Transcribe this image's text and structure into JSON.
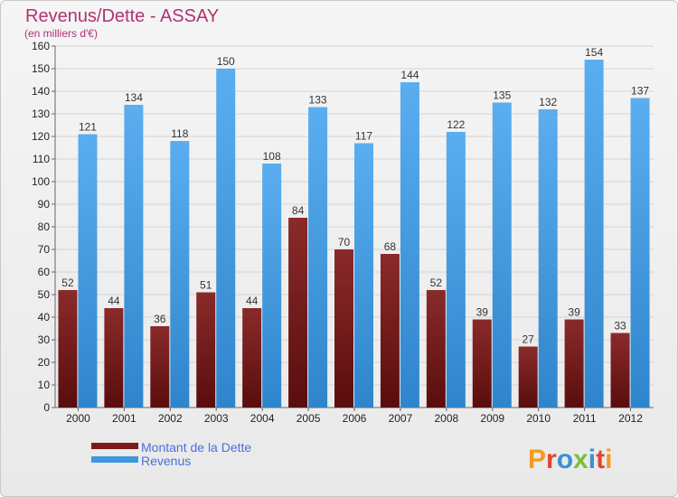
{
  "colors": {
    "dette": "#7b1b1b",
    "revenus": "#3f97de",
    "title": "#b0326f",
    "legend_text": "#4a6fdc"
  },
  "logo": {
    "text": "Proxiti"
  },
  "chart_data": {
    "type": "bar",
    "title": "Revenus/Dette - ASSAY",
    "subtitle": "(en milliers d'€)",
    "xlabel": "",
    "ylabel": "",
    "ylim": [
      0,
      160
    ],
    "yticks": [
      0,
      10,
      20,
      30,
      40,
      50,
      60,
      70,
      80,
      90,
      100,
      110,
      120,
      130,
      140,
      150,
      160
    ],
    "grid": true,
    "legend_position": "bottom-left",
    "categories": [
      "2000",
      "2001",
      "2002",
      "2003",
      "2004",
      "2005",
      "2006",
      "2007",
      "2008",
      "2009",
      "2010",
      "2011",
      "2012"
    ],
    "series": [
      {
        "name": "Montant de la Dette",
        "values": [
          52,
          44,
          36,
          51,
          44,
          84,
          70,
          68,
          52,
          39,
          27,
          39,
          33
        ]
      },
      {
        "name": "Revenus",
        "values": [
          121,
          134,
          118,
          150,
          108,
          133,
          117,
          144,
          122,
          135,
          132,
          154,
          137
        ]
      }
    ]
  }
}
